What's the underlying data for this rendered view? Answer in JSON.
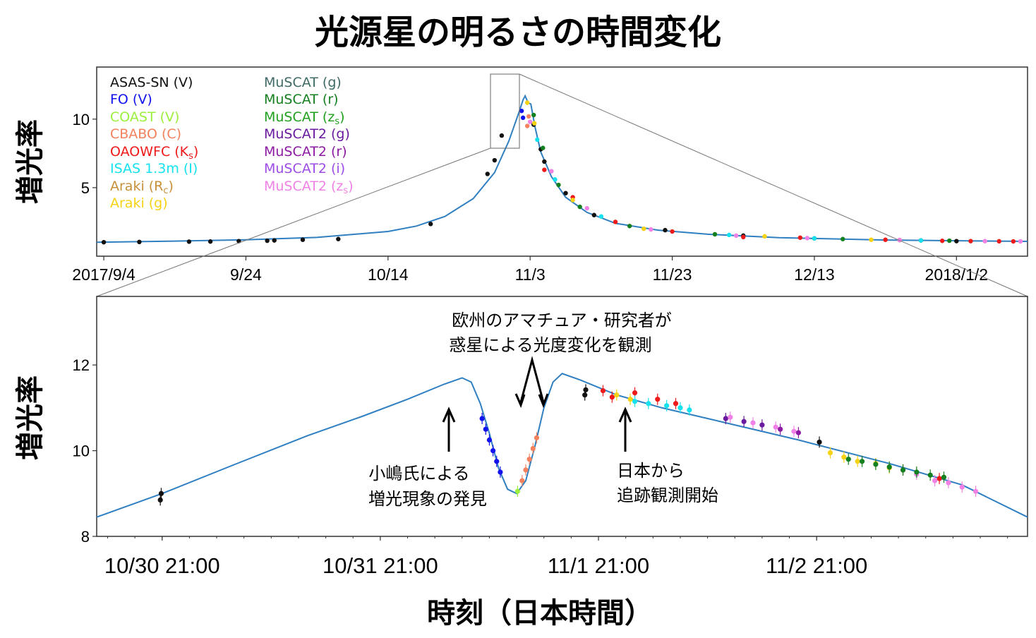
{
  "title": "光源星の明るさの時間変化",
  "colors": {
    "model": "#2f7fc1",
    "ASAS-SN (V)": "#111111",
    "FO (V)": "#1212ee",
    "COAST (V)": "#9cf03c",
    "CBABO (C)": "#f4825e",
    "OAOWFC (Ks)": "#ee1a1a",
    "ISAS 1.3m (I)": "#14e2ee",
    "Araki (Rc)": "#c7903a",
    "Araki (g)": "#f5d314",
    "MuSCAT (g)": "#3f6a66",
    "MuSCAT (r)": "#15801f",
    "MuSCAT (zs)": "#21a020",
    "MuSCAT2 (g)": "#6a1a9e",
    "MuSCAT2 (r)": "#8d1aa3",
    "MuSCAT2 (i)": "#9c4de8",
    "MuSCAT2 (zs)": "#f082e6"
  },
  "top_panel": {
    "ylabel": "増光率",
    "legend_col1": [
      "ASAS-SN (V)",
      "FO (V)",
      "COAST (V)",
      "CBABO (C)",
      "OAOWFC (K",
      "ISAS 1.3m (I)",
      "Araki (R",
      "Araki (g)"
    ],
    "legend_col2": [
      "MuSCAT (g)",
      "MuSCAT (r)",
      "MuSCAT (z",
      "MuSCAT2 (g)",
      "MuSCAT2 (r)",
      "MuSCAT2 (i)",
      "MuSCAT2 (z"
    ],
    "legend_sub": {
      "OAOWFC": "s",
      "Araki_R": "c",
      "MuSCAT_z": "s",
      "MuSCAT2_z": "s"
    }
  },
  "bottom_panel": {
    "ylabel": "増光率",
    "xlabel": "時刻（日本時間）",
    "annotation_top": [
      "欧州のアマチュア・研究者が",
      "惑星による光度変化を観測"
    ],
    "annotation_left": [
      "小嶋氏による",
      "増光現象の発見"
    ],
    "annotation_right": [
      "日本から",
      "追跡観測開始"
    ]
  },
  "chart_data": [
    {
      "type": "scatter",
      "panel": "top",
      "xlabel": "",
      "ylabel": "増光率",
      "x_ticks": [
        "2017/9/4",
        "9/24",
        "10/14",
        "11/3",
        "11/23",
        "12/13",
        "2018/1/2"
      ],
      "x_tick_days": [
        0,
        20,
        40,
        60,
        80,
        100,
        120
      ],
      "xlim_days": [
        -1,
        130
      ],
      "y_ticks": [
        5,
        10
      ],
      "ylim": [
        0,
        13.8
      ],
      "model_curve": {
        "name": "",
        "points_days_vs_magnification": [
          [
            -1,
            1.02
          ],
          [
            10,
            1.1
          ],
          [
            20,
            1.2
          ],
          [
            30,
            1.37
          ],
          [
            40,
            1.8
          ],
          [
            44,
            2.2
          ],
          [
            48,
            2.9
          ],
          [
            52,
            4.2
          ],
          [
            55,
            6.1
          ],
          [
            57,
            8.4
          ],
          [
            58.5,
            10.6
          ],
          [
            59,
            11.4
          ],
          [
            59.3,
            11.7
          ],
          [
            59.7,
            11.2
          ],
          [
            60.1,
            11.1
          ],
          [
            60.7,
            9.4
          ],
          [
            61.5,
            7.6
          ],
          [
            63,
            5.8
          ],
          [
            65,
            4.3
          ],
          [
            68,
            3.2
          ],
          [
            72,
            2.4
          ],
          [
            78,
            1.9
          ],
          [
            85,
            1.6
          ],
          [
            95,
            1.35
          ],
          [
            110,
            1.18
          ],
          [
            130,
            1.08
          ]
        ]
      },
      "series": [
        {
          "name": "ASAS-SN (V)",
          "days_vs_magnification": [
            [
              0,
              1.02
            ],
            [
              5,
              1.04
            ],
            [
              12,
              1.06
            ],
            [
              15,
              1.07
            ],
            [
              19,
              1.1
            ],
            [
              23,
              1.13
            ],
            [
              24,
              1.15
            ],
            [
              28,
              1.2
            ],
            [
              33,
              1.25
            ],
            [
              46,
              2.35
            ],
            [
              54,
              6.0
            ],
            [
              55,
              7.0
            ],
            [
              56,
              8.8
            ],
            [
              60.5,
              9.6
            ],
            [
              61.5,
              7.8
            ],
            [
              62,
              6.9
            ],
            [
              65,
              4.6
            ],
            [
              69,
              3.0
            ],
            [
              79,
              1.9
            ],
            [
              90,
              1.5
            ],
            [
              100,
              1.3
            ],
            [
              115,
              1.15
            ],
            [
              120,
              1.1
            ]
          ]
        },
        {
          "name": "FO (V)",
          "days_vs_magnification": [
            [
              58.8,
              10.6
            ],
            [
              59.0,
              10.1
            ]
          ]
        },
        {
          "name": "CBABO (C)",
          "days_vs_magnification": [
            [
              59.6,
              9.5
            ],
            [
              59.8,
              10.2
            ]
          ]
        },
        {
          "name": "OAOWFC (Ks)",
          "days_vs_magnification": [
            [
              62,
              6.3
            ],
            [
              66,
              4.3
            ],
            [
              72,
              2.5
            ],
            [
              80,
              1.8
            ],
            [
              90,
              1.4
            ],
            [
              98,
              1.35
            ],
            [
              110,
              1.2
            ],
            [
              112,
              1.18
            ],
            [
              118,
              1.12
            ],
            [
              122,
              1.1
            ],
            [
              126,
              1.09
            ],
            [
              128,
              1.08
            ]
          ]
        },
        {
          "name": "ISAS 1.3m (I)",
          "days_vs_magnification": [
            [
              61,
              8.5
            ],
            [
              63.5,
              5.6
            ],
            [
              70,
              2.9
            ],
            [
              88,
              1.55
            ],
            [
              100,
              1.3
            ],
            [
              115,
              1.15
            ]
          ]
        },
        {
          "name": "Araki (g)",
          "days_vs_magnification": [
            [
              59.6,
              11.2
            ],
            [
              60.6,
              9.7
            ],
            [
              66,
              4.1
            ],
            [
              76,
              2.0
            ],
            [
              93,
              1.45
            ],
            [
              108,
              1.2
            ]
          ]
        },
        {
          "name": "MuSCAT (r)",
          "days_vs_magnification": [
            [
              60.5,
              10.3
            ],
            [
              61.8,
              7.9
            ],
            [
              64,
              5.2
            ],
            [
              67,
              3.6
            ],
            [
              74,
              2.2
            ],
            [
              86,
              1.6
            ],
            [
              104,
              1.25
            ],
            [
              119,
              1.13
            ]
          ]
        },
        {
          "name": "MuSCAT2 (zs)",
          "days_vs_magnification": [
            [
              60.0,
              9.8
            ],
            [
              63,
              6.2
            ],
            [
              68,
              3.5
            ],
            [
              77,
              1.95
            ],
            [
              89,
              1.5
            ],
            [
              99,
              1.32
            ],
            [
              112,
              1.18
            ],
            [
              124,
              1.1
            ],
            [
              129,
              1.08
            ]
          ]
        }
      ]
    },
    {
      "type": "scatter",
      "panel": "bottom",
      "xlabel": "時刻（日本時間）",
      "ylabel": "増光率",
      "x_ticks": [
        "10/30 21:00",
        "10/31 21:00",
        "11/1 21:00",
        "11/2 21:00"
      ],
      "x_tick_hours": [
        0,
        24,
        48,
        72
      ],
      "xlim_hours": [
        -7.2,
        95.2
      ],
      "y_ticks": [
        8,
        10,
        12
      ],
      "ylim": [
        8,
        13.6
      ],
      "model_curve": {
        "name": "",
        "points_hours_vs_magnification": [
          [
            -7.2,
            8.45
          ],
          [
            0,
            9.0
          ],
          [
            8,
            9.68
          ],
          [
            16,
            10.35
          ],
          [
            22,
            10.8
          ],
          [
            27,
            11.2
          ],
          [
            31,
            11.55
          ],
          [
            33,
            11.7
          ],
          [
            34,
            11.6
          ],
          [
            35,
            11.1
          ],
          [
            36,
            10.4
          ],
          [
            37,
            9.6
          ],
          [
            38,
            9.1
          ],
          [
            39,
            9.0
          ],
          [
            40,
            9.3
          ],
          [
            41,
            10.1
          ],
          [
            42,
            11.0
          ],
          [
            43,
            11.6
          ],
          [
            44,
            11.8
          ],
          [
            46,
            11.65
          ],
          [
            50,
            11.3
          ],
          [
            55,
            11.0
          ],
          [
            60,
            10.75
          ],
          [
            70,
            10.25
          ],
          [
            80,
            9.7
          ],
          [
            88,
            9.2
          ],
          [
            95.2,
            8.45
          ]
        ]
      },
      "series": [
        {
          "name": "ASAS-SN (V)",
          "hours_vs_magnification": [
            [
              -0.2,
              8.85
            ],
            [
              -0.1,
              9.0
            ],
            [
              46.5,
              11.3
            ],
            [
              46.6,
              11.42
            ],
            [
              72.3,
              10.2
            ]
          ]
        },
        {
          "name": "FO (V)",
          "hours_vs_magnification": [
            [
              35.2,
              10.75
            ],
            [
              35.6,
              10.5
            ],
            [
              36.0,
              10.25
            ],
            [
              36.4,
              10.0
            ],
            [
              36.8,
              9.75
            ],
            [
              37.2,
              9.5
            ]
          ]
        },
        {
          "name": "COAST (V)",
          "hours_vs_magnification": [
            [
              39.1,
              9.05
            ]
          ]
        },
        {
          "name": "CBABO (C)",
          "hours_vs_magnification": [
            [
              39.6,
              9.3
            ],
            [
              40.0,
              9.55
            ],
            [
              40.4,
              9.8
            ],
            [
              40.8,
              10.05
            ],
            [
              41.2,
              10.3
            ]
          ]
        },
        {
          "name": "OAOWFC (Ks)",
          "hours_vs_magnification": [
            [
              48.5,
              11.4
            ],
            [
              49.5,
              11.25
            ],
            [
              52.0,
              11.35
            ],
            [
              54.5,
              11.2
            ],
            [
              56.5,
              11.1
            ],
            [
              81.5,
              9.55
            ],
            [
              85.5,
              9.35
            ]
          ]
        },
        {
          "name": "Araki (g)",
          "hours_vs_magnification": [
            [
              50.0,
              11.3
            ],
            [
              51.5,
              11.2
            ],
            [
              73.5,
              9.95
            ],
            [
              75.0,
              9.85
            ],
            [
              76.5,
              9.75
            ],
            [
              78.5,
              9.7
            ],
            [
              80.0,
              9.6
            ]
          ]
        },
        {
          "name": "ISAS 1.3m (I)",
          "hours_vs_magnification": [
            [
              52.0,
              11.15
            ],
            [
              53.5,
              11.1
            ],
            [
              55.5,
              11.05
            ],
            [
              57.0,
              11.0
            ],
            [
              58.0,
              10.95
            ]
          ]
        },
        {
          "name": "MuSCAT2 (g)",
          "hours_vs_magnification": [
            [
              62.0,
              10.75
            ],
            [
              64.0,
              10.68
            ],
            [
              66.0,
              10.6
            ]
          ]
        },
        {
          "name": "MuSCAT2 (zs)",
          "hours_vs_magnification": [
            [
              62.5,
              10.78
            ],
            [
              65.0,
              10.65
            ],
            [
              67.5,
              10.55
            ],
            [
              69.5,
              10.45
            ],
            [
              83.0,
              9.45
            ],
            [
              85.0,
              9.3
            ],
            [
              86.5,
              9.25
            ],
            [
              88.0,
              9.15
            ],
            [
              89.5,
              9.05
            ]
          ]
        },
        {
          "name": "MuSCAT2 (r)",
          "hours_vs_magnification": [
            [
              68.0,
              10.5
            ],
            [
              70.0,
              10.42
            ]
          ]
        },
        {
          "name": "MuSCAT (r)",
          "hours_vs_magnification": [
            [
              75.5,
              9.8
            ],
            [
              77.0,
              9.75
            ],
            [
              78.5,
              9.68
            ],
            [
              80.0,
              9.62
            ],
            [
              81.5,
              9.55
            ],
            [
              83.0,
              9.5
            ],
            [
              84.5,
              9.43
            ],
            [
              86.0,
              9.38
            ]
          ]
        }
      ]
    }
  ]
}
